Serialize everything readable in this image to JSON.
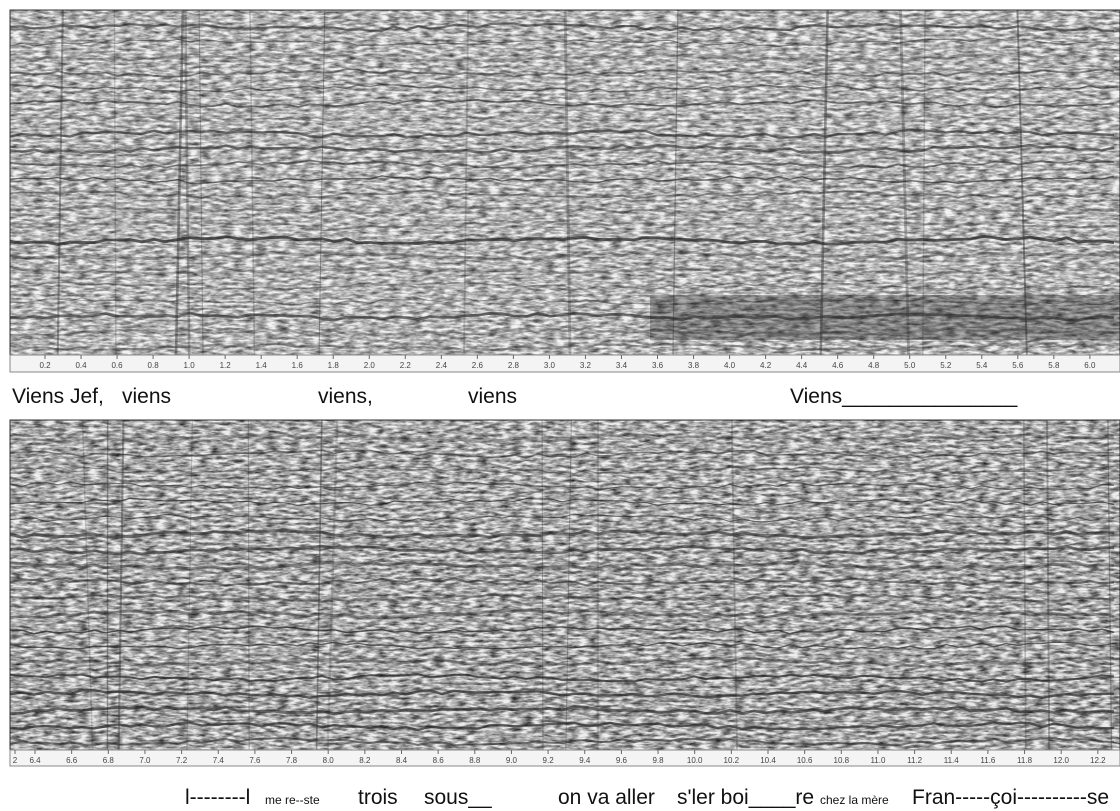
{
  "top_panel": {
    "time_labels": [
      "0.2",
      "0.4",
      "0.6",
      "0.8",
      "1.0",
      "1.2",
      "1.4",
      "1.6",
      "1.8",
      "2.0",
      "2.2",
      "2.4",
      "2.6",
      "2.8",
      "3.0",
      "3.2",
      "3.4",
      "3.6",
      "3.8",
      "4.0",
      "4.2",
      "4.4",
      "4.6",
      "4.8",
      "5.0",
      "5.2",
      "5.4",
      "5.6",
      "5.8",
      "6.0"
    ],
    "lyrics": [
      "Viens Jef,",
      "viens",
      "viens,",
      "viens",
      "Viens_______________"
    ]
  },
  "bottom_panel": {
    "time_labels": [
      "2",
      "6.4",
      "6.6",
      "6.8",
      "7.0",
      "7.2",
      "7.4",
      "7.6",
      "7.8",
      "8.0",
      "8.2",
      "8.4",
      "8.6",
      "8.8",
      "9.0",
      "9.2",
      "9.4",
      "9.6",
      "9.8",
      "10.0",
      "10.2",
      "10.4",
      "10.6",
      "10.8",
      "11.0",
      "11.2",
      "11.4",
      "11.6",
      "11.8",
      "12.0",
      "12.2"
    ],
    "lyrics": [
      "l--------l",
      "me re--ste",
      "trois",
      "sous__",
      "on va aller",
      "s'ler boi____re",
      "chez la mère",
      "Fran-----çoi----------se"
    ]
  }
}
